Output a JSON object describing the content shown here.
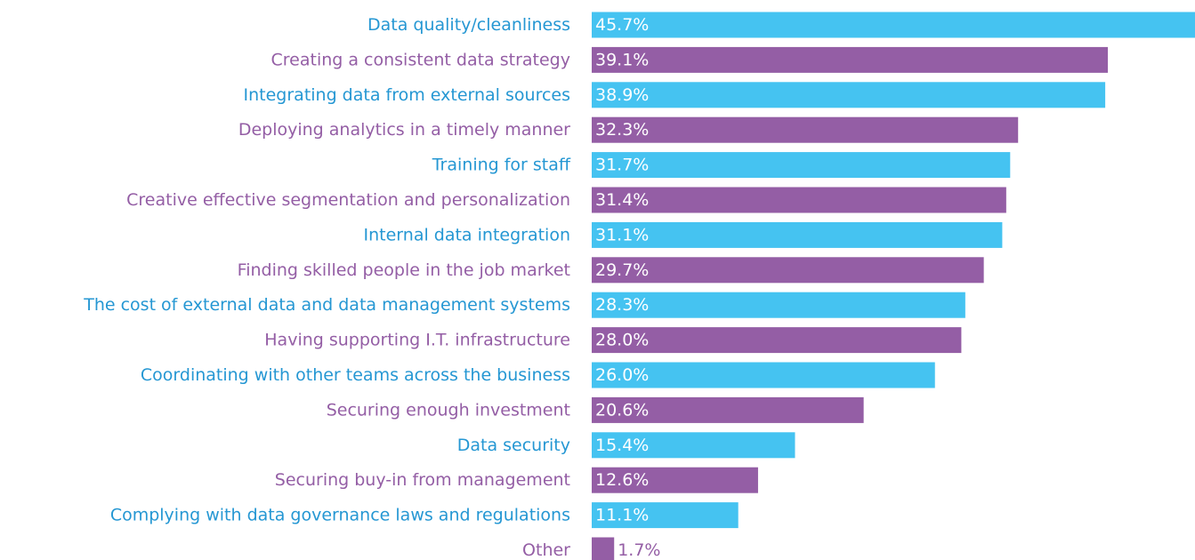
{
  "chart_data": {
    "type": "bar",
    "orientation": "horizontal",
    "categories": [
      "Data quality/cleanliness",
      "Creating a consistent data strategy",
      "Integrating data from external sources",
      "Deploying analytics in a timely manner",
      "Training for staff",
      "Creative effective segmentation and personalization",
      "Internal data integration",
      "Finding skilled people in the job market",
      "The cost of external data and data management systems",
      "Having supporting I.T. infrastructure",
      "Coordinating with other teams across the business",
      "Securing enough investment",
      "Data security",
      "Securing buy-in from management",
      "Complying with data governance laws and regulations",
      "Other"
    ],
    "values": [
      45.7,
      39.1,
      38.9,
      32.3,
      31.7,
      31.4,
      31.1,
      29.7,
      28.3,
      28.0,
      26.0,
      20.6,
      15.4,
      12.6,
      11.1,
      1.7
    ],
    "value_labels": [
      "45.7%",
      "39.1%",
      "38.9%",
      "32.3%",
      "31.7%",
      "31.4%",
      "31.1%",
      "29.7%",
      "28.3%",
      "28.0%",
      "26.0%",
      "20.6%",
      "15.4%",
      "12.6%",
      "11.1%",
      "1.7%"
    ],
    "colors": [
      "#45c3f1",
      "#945ea5",
      "#45c3f1",
      "#945ea5",
      "#45c3f1",
      "#945ea5",
      "#45c3f1",
      "#945ea5",
      "#45c3f1",
      "#945ea5",
      "#45c3f1",
      "#945ea5",
      "#45c3f1",
      "#945ea5",
      "#45c3f1",
      "#945ea5"
    ],
    "label_colors": [
      "#2597d3",
      "#945ea5",
      "#2597d3",
      "#945ea5",
      "#2597d3",
      "#945ea5",
      "#2597d3",
      "#945ea5",
      "#2597d3",
      "#945ea5",
      "#2597d3",
      "#945ea5",
      "#2597d3",
      "#945ea5",
      "#2597d3",
      "#945ea5"
    ]
  }
}
